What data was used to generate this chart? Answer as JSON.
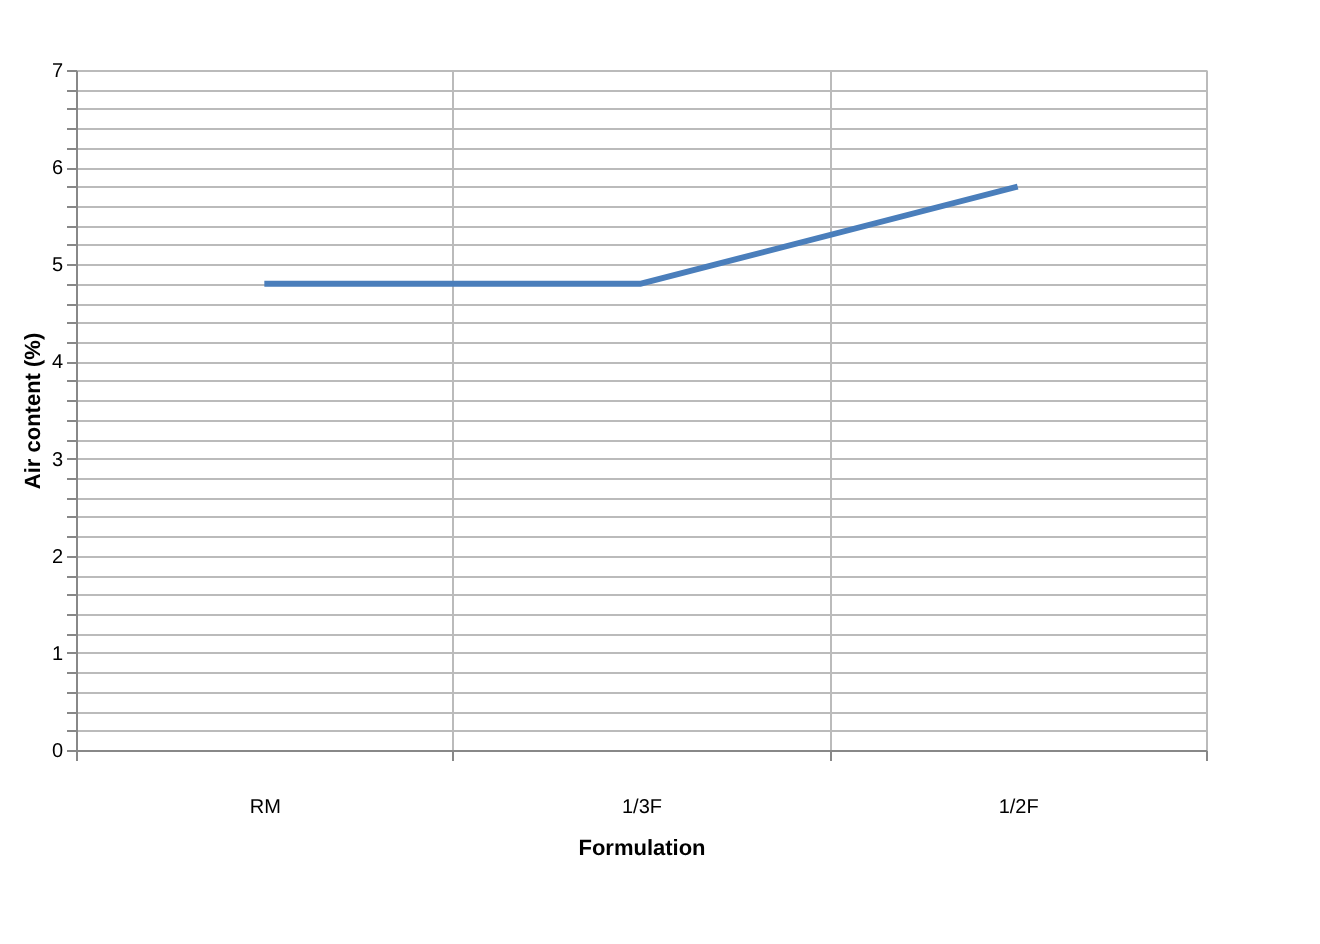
{
  "chart_data": {
    "type": "line",
    "xlabel": "Formulation",
    "ylabel": "Air content  (%)",
    "categories": [
      "RM",
      "1/3F",
      "1/2F"
    ],
    "series": [
      {
        "color": "#4a7ebb",
        "values": [
          4.8,
          4.8,
          5.8
        ]
      }
    ],
    "ylim": [
      0,
      7
    ],
    "yticks": [
      0,
      {
        "value": 0.2,
        "label": null
      },
      {
        "value": 0.4,
        "label": null
      },
      {
        "value": 0.6,
        "label": null
      },
      {
        "value": 0.8,
        "label": null
      },
      1,
      {
        "value": 1.2,
        "label": null
      },
      {
        "value": 1.4,
        "label": null
      },
      {
        "value": 1.6,
        "label": null
      },
      {
        "value": 1.8,
        "label": null
      },
      2,
      {
        "value": 2.2,
        "label": null
      },
      {
        "value": 2.4,
        "label": null
      },
      {
        "value": 2.6,
        "label": null
      },
      {
        "value": 2.8,
        "label": null
      },
      3,
      {
        "value": 3.2,
        "label": null
      },
      {
        "value": 3.4,
        "label": null
      },
      {
        "value": 3.6,
        "label": null
      },
      {
        "value": 3.8,
        "label": null
      },
      4,
      {
        "value": 4.2,
        "label": null
      },
      {
        "value": 4.4,
        "label": null
      },
      {
        "value": 4.6,
        "label": null
      },
      {
        "value": 4.8,
        "label": null
      },
      5,
      {
        "value": 5.2,
        "label": null
      },
      {
        "value": 5.4,
        "label": null
      },
      {
        "value": 5.6,
        "label": null
      },
      {
        "value": 5.8,
        "label": null
      },
      6,
      {
        "value": 6.2,
        "label": null
      },
      {
        "value": 6.4,
        "label": null
      },
      {
        "value": 6.6,
        "label": null
      },
      {
        "value": 6.8,
        "label": null
      },
      7
    ],
    "grid": true,
    "legend": false
  }
}
